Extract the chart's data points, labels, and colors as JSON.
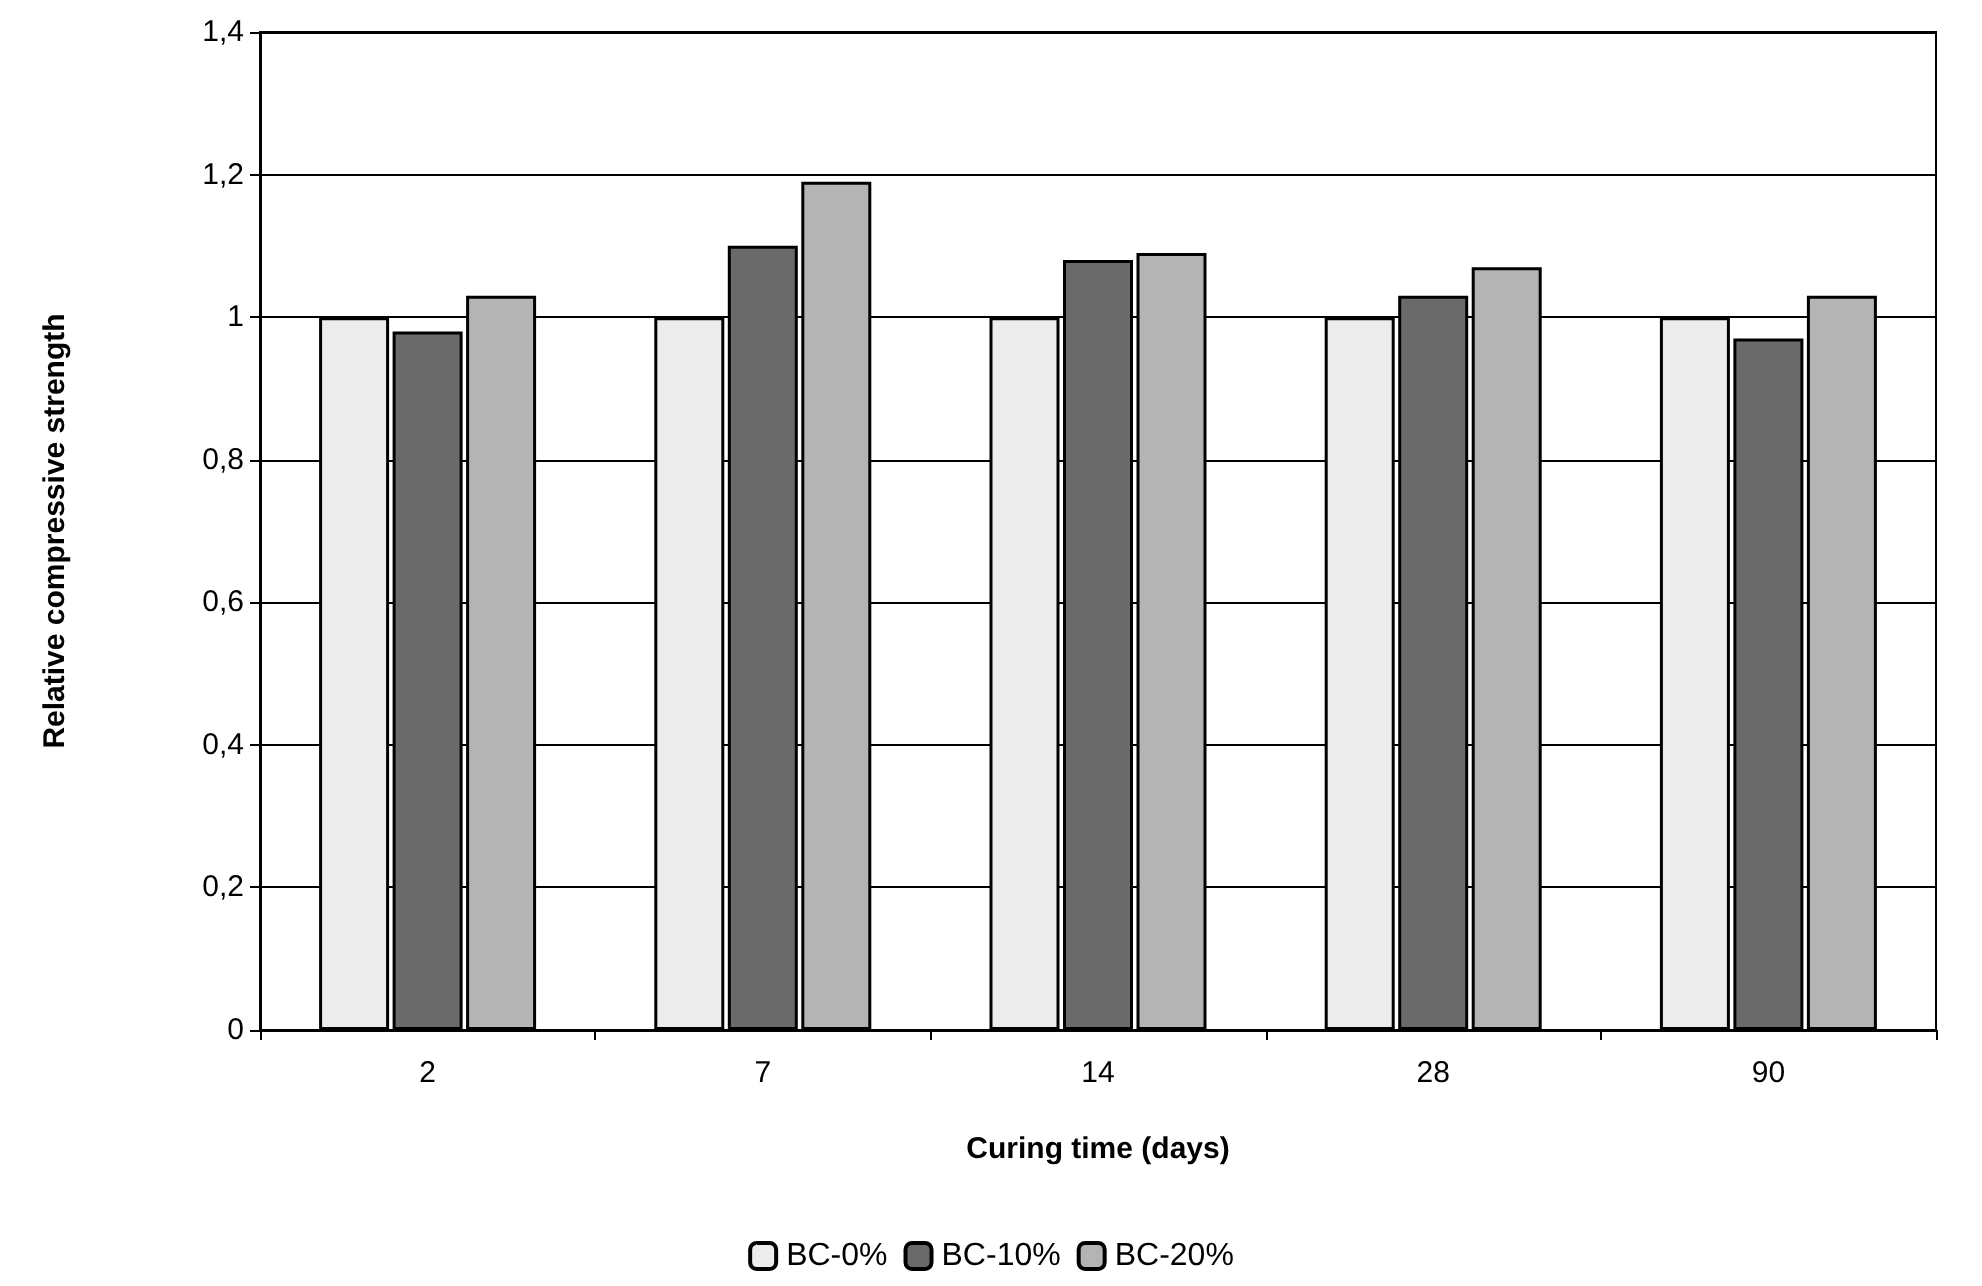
{
  "chart_data": {
    "type": "bar",
    "xlabel": "Curing time (days)",
    "ylabel": "Relative compressive strength",
    "categories": [
      "2",
      "7",
      "14",
      "28",
      "90"
    ],
    "series": [
      {
        "name": "BC-0%",
        "color": "#ececec",
        "values": [
          1.0,
          1.0,
          1.0,
          1.0,
          1.0
        ]
      },
      {
        "name": "BC-10%",
        "color": "#6a6a6a",
        "values": [
          0.98,
          1.1,
          1.08,
          1.03,
          0.97
        ]
      },
      {
        "name": "BC-20%",
        "color": "#b4b4b4",
        "values": [
          1.03,
          1.19,
          1.09,
          1.07,
          1.03
        ]
      }
    ],
    "ylim": [
      0,
      1.4
    ],
    "yticks": [
      0,
      {
        "value": 0.2,
        "label": "0,2"
      },
      {
        "value": 0.4,
        "label": "0,4"
      },
      {
        "value": 0.6,
        "label": "0,6"
      },
      {
        "value": 0.8,
        "label": "0,8"
      },
      1,
      {
        "value": 1.2,
        "label": "1,2"
      },
      {
        "value": 1.4,
        "label": "1,4"
      }
    ],
    "grid": "y",
    "legend": "bottom"
  }
}
